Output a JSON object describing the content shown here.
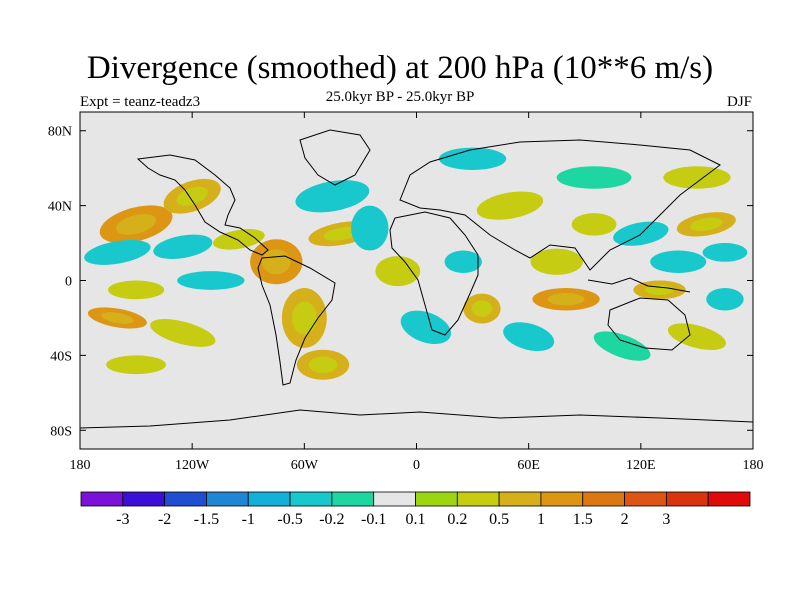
{
  "header": {
    "title": "Divergence (smoothed) at 200 hPa (10**6 m/s)",
    "subtitle": "25.0kyr BP - 25.0kyr BP",
    "experiment": "Expt = teanz-teadz3",
    "season": "DJF"
  },
  "chart_data": {
    "type": "heatmap",
    "title": "Divergence (smoothed) at 200 hPa (10**6 m/s)",
    "subtitle": "25.0kyr BP - 25.0kyr BP",
    "variable": "Divergence (smoothed)",
    "level": "200 hPa",
    "units": "10**6 m/s",
    "season": "DJF",
    "experiment": "teanz-teadz3",
    "xlim": [
      -180,
      180
    ],
    "ylim": [
      -90,
      90
    ],
    "x_ticks": [
      {
        "value": -180,
        "label": "180"
      },
      {
        "value": -120,
        "label": "120W"
      },
      {
        "value": -60,
        "label": "60W"
      },
      {
        "value": 0,
        "label": "0"
      },
      {
        "value": 60,
        "label": "60E"
      },
      {
        "value": 120,
        "label": "120E"
      },
      {
        "value": 180,
        "label": "180"
      }
    ],
    "y_ticks": [
      {
        "value": 80,
        "label": "80N"
      },
      {
        "value": 40,
        "label": "40N"
      },
      {
        "value": 0,
        "label": "0"
      },
      {
        "value": -40,
        "label": "40S"
      },
      {
        "value": -80,
        "label": "80S"
      }
    ],
    "colorbar": {
      "colors": [
        "#7a12d8",
        "#3a10d6",
        "#1f4fd0",
        "#1e86d2",
        "#14b0d8",
        "#19c8cc",
        "#1ed6a0",
        "#e6e6e6",
        "#9ed512",
        "#c6cc12",
        "#d6b01a",
        "#dc9614",
        "#dc7814",
        "#dc5514",
        "#d8340f",
        "#e00a0a"
      ],
      "labels": [
        "-3",
        "-2",
        "-1.5",
        "-1",
        "-0.5",
        "-0.2",
        "-0.1",
        "0.1",
        "0.2",
        "0.5",
        "1",
        "1.5",
        "2",
        "3"
      ]
    },
    "regions": [
      {
        "lon": -150,
        "lat": 30,
        "rx": 20,
        "ry": 9,
        "rot": -15,
        "level": 1.3
      },
      {
        "lon": -120,
        "lat": 45,
        "rx": 16,
        "ry": 8,
        "rot": -20,
        "level": 0.8
      },
      {
        "lon": -160,
        "lat": 15,
        "rx": 18,
        "ry": 6,
        "rot": -10,
        "level": -0.35
      },
      {
        "lon": -125,
        "lat": 18,
        "rx": 16,
        "ry": 6,
        "rot": -10,
        "level": -0.5
      },
      {
        "lon": -95,
        "lat": 22,
        "rx": 14,
        "ry": 5,
        "rot": -10,
        "level": 0.4
      },
      {
        "lon": -150,
        "lat": -5,
        "rx": 15,
        "ry": 5,
        "rot": 0,
        "level": 0.4
      },
      {
        "lon": -110,
        "lat": 0,
        "rx": 18,
        "ry": 5,
        "rot": 0,
        "level": -0.3
      },
      {
        "lon": -160,
        "lat": -20,
        "rx": 16,
        "ry": 5,
        "rot": 10,
        "level": 1.2
      },
      {
        "lon": -125,
        "lat": -28,
        "rx": 18,
        "ry": 6,
        "rot": 15,
        "level": 0.3
      },
      {
        "lon": -150,
        "lat": -45,
        "rx": 16,
        "ry": 5,
        "rot": 0,
        "level": 0.2
      },
      {
        "lon": -75,
        "lat": 10,
        "rx": 14,
        "ry": 12,
        "rot": 0,
        "level": 1.0
      },
      {
        "lon": -40,
        "lat": 25,
        "rx": 18,
        "ry": 6,
        "rot": -10,
        "level": 0.6
      },
      {
        "lon": -45,
        "lat": 45,
        "rx": 20,
        "ry": 8,
        "rot": -10,
        "level": -0.4
      },
      {
        "lon": -25,
        "lat": 28,
        "rx": 10,
        "ry": 12,
        "rot": 0,
        "level": -0.3
      },
      {
        "lon": -60,
        "lat": -20,
        "rx": 12,
        "ry": 16,
        "rot": 0,
        "level": 0.5
      },
      {
        "lon": -50,
        "lat": -45,
        "rx": 14,
        "ry": 8,
        "rot": 0,
        "level": 0.8
      },
      {
        "lon": -10,
        "lat": 5,
        "rx": 12,
        "ry": 8,
        "rot": 0,
        "level": 0.3
      },
      {
        "lon": 5,
        "lat": -25,
        "rx": 14,
        "ry": 8,
        "rot": 20,
        "level": -0.4
      },
      {
        "lon": 25,
        "lat": 10,
        "rx": 10,
        "ry": 6,
        "rot": 0,
        "level": -0.5
      },
      {
        "lon": 35,
        "lat": -15,
        "rx": 10,
        "ry": 8,
        "rot": 0,
        "level": 0.8
      },
      {
        "lon": 50,
        "lat": 40,
        "rx": 18,
        "ry": 7,
        "rot": -10,
        "level": 0.3
      },
      {
        "lon": 30,
        "lat": 65,
        "rx": 18,
        "ry": 6,
        "rot": 0,
        "level": -0.3
      },
      {
        "lon": 75,
        "lat": 10,
        "rx": 14,
        "ry": 7,
        "rot": 0,
        "level": 0.4
      },
      {
        "lon": 80,
        "lat": -10,
        "rx": 18,
        "ry": 6,
        "rot": 0,
        "level": 1.0
      },
      {
        "lon": 60,
        "lat": -30,
        "rx": 14,
        "ry": 7,
        "rot": 15,
        "level": -0.3
      },
      {
        "lon": 95,
        "lat": 30,
        "rx": 12,
        "ry": 6,
        "rot": 0,
        "level": 0.3
      },
      {
        "lon": 120,
        "lat": 25,
        "rx": 15,
        "ry": 6,
        "rot": -10,
        "level": -0.35
      },
      {
        "lon": 140,
        "lat": 10,
        "rx": 15,
        "ry": 6,
        "rot": 0,
        "level": -0.5
      },
      {
        "lon": 130,
        "lat": -5,
        "rx": 14,
        "ry": 5,
        "rot": 0,
        "level": 0.8
      },
      {
        "lon": 155,
        "lat": 30,
        "rx": 16,
        "ry": 6,
        "rot": -10,
        "level": 0.8
      },
      {
        "lon": 165,
        "lat": 15,
        "rx": 12,
        "ry": 5,
        "rot": 0,
        "level": -0.3
      },
      {
        "lon": 110,
        "lat": -35,
        "rx": 16,
        "ry": 6,
        "rot": 20,
        "level": -0.2
      },
      {
        "lon": 150,
        "lat": -30,
        "rx": 16,
        "ry": 6,
        "rot": 15,
        "level": 0.3
      },
      {
        "lon": 165,
        "lat": -10,
        "rx": 10,
        "ry": 6,
        "rot": 0,
        "level": -0.4
      },
      {
        "lon": 95,
        "lat": 55,
        "rx": 20,
        "ry": 6,
        "rot": 0,
        "level": -0.2
      },
      {
        "lon": 150,
        "lat": 55,
        "rx": 18,
        "ry": 6,
        "rot": 0,
        "level": 0.2
      }
    ]
  }
}
